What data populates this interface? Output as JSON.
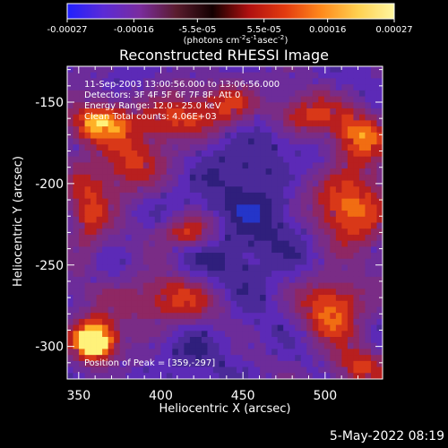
{
  "chart_data": {
    "type": "heatmap",
    "title": "Reconstructed RHESSI Image",
    "xlabel": "Heliocentric X (arcsec)",
    "ylabel": "Heliocentric Y (arcsec)",
    "xlim": [
      343,
      535
    ],
    "ylim": [
      -320,
      -128
    ],
    "xticks": [
      350,
      400,
      450,
      500
    ],
    "yticks": [
      -150,
      -200,
      -250,
      -300
    ],
    "colorbar": {
      "label_main": "(photons cm",
      "label_sup1": "-2",
      "label_mid": " s",
      "label_sup2": "-1",
      "label_end": " asec",
      "label_sup3": "-2",
      "label_close": ")",
      "tick_values": [
        -0.00027,
        -0.00016,
        -5.5e-05,
        5.5e-05,
        0.00016,
        0.00027
      ],
      "tick_labels": [
        "-0.00027",
        "-0.00016",
        "-5.5e-05",
        "5.5e-05",
        "0.00016",
        "0.00027"
      ],
      "colors": [
        "#2020ff",
        "#5b2bd6",
        "#7a2c9e",
        "#5a1c2e",
        "#130000",
        "#b01010",
        "#e33b0f",
        "#ff8a1c",
        "#ffd050",
        "#fff6a0"
      ]
    },
    "annotations": [
      "11-Sep-2003 13:00:56.000 to 13:06:56.000",
      "Detectors: 3F 4F 5F 6F 7F 8F, Att 0",
      "Energy Range: 12.0 - 25.0 keV",
      "Clean    Total counts: 4.06E+03",
      "Position of Peak = [359,-297]"
    ],
    "peak": {
      "x": 359,
      "y": -297
    },
    "grid": false,
    "legend": "none",
    "image_colors": {
      "background": "#5b2cbe",
      "low": "#2f1f7c",
      "mid": "#7d2e8d",
      "high": "#d93018",
      "peak": "#fff27a"
    }
  },
  "footer": {
    "timestamp": "5-May-2022 08:19"
  }
}
